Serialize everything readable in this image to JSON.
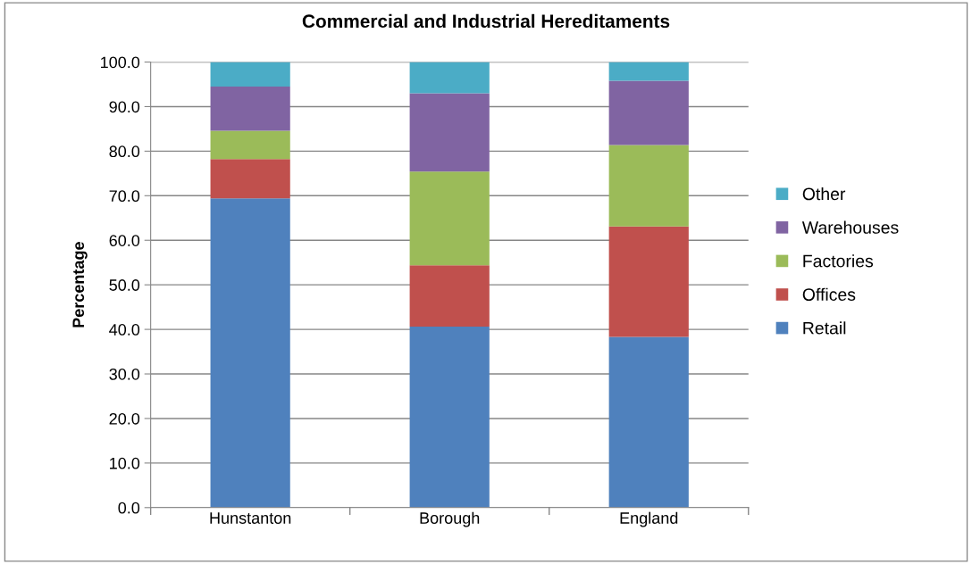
{
  "chart_data": {
    "type": "bar",
    "stacked": true,
    "title": "Commercial and Industrial Hereditaments",
    "ylabel": "Percentage",
    "categories": [
      "Hunstanton",
      "Borough",
      "England"
    ],
    "series": [
      {
        "name": "Retail",
        "color": "#4f81bd",
        "values": [
          69.4,
          40.6,
          38.3
        ]
      },
      {
        "name": "Offices",
        "color": "#c0504d",
        "values": [
          8.8,
          13.8,
          24.8
        ]
      },
      {
        "name": "Factories",
        "color": "#9bbb59",
        "values": [
          6.4,
          21.0,
          18.3
        ]
      },
      {
        "name": "Warehouses",
        "color": "#8064a2",
        "values": [
          9.9,
          17.6,
          14.4
        ]
      },
      {
        "name": "Other",
        "color": "#4bacc6",
        "values": [
          5.5,
          7.0,
          4.2
        ]
      }
    ],
    "ylim": [
      0,
      100
    ],
    "yticks": [
      {
        "value": 0,
        "label": "0.0"
      },
      {
        "value": 10,
        "label": "10.0"
      },
      {
        "value": 20,
        "label": "20.0"
      },
      {
        "value": 30,
        "label": "30.0"
      },
      {
        "value": 40,
        "label": "40.0"
      },
      {
        "value": 50,
        "label": "50.0"
      },
      {
        "value": 60,
        "label": "60.0"
      },
      {
        "value": 70,
        "label": "70.0"
      },
      {
        "value": 80,
        "label": "80.0"
      },
      {
        "value": 90,
        "label": "90.0"
      },
      {
        "value": 100,
        "label": "100.0"
      }
    ],
    "grid": "y",
    "legend": "right"
  }
}
